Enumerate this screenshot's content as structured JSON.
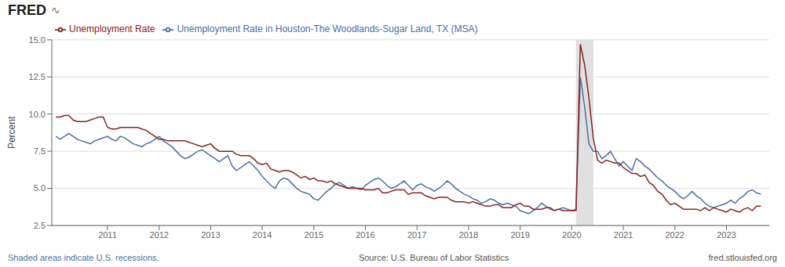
{
  "chart_data": {
    "type": "line",
    "ylabel": "Percent",
    "annotations": [
      "FRED",
      "∿",
      "Shaded areas indicate U.S. recessions.",
      "Source: U.S. Bureau of Labor Statistics",
      "fred.stlouisfed.org"
    ],
    "xlim": [
      2009.92,
      2023.83
    ],
    "xticks": [
      2011,
      2012,
      2013,
      2014,
      2015,
      2016,
      2017,
      2018,
      2019,
      2020,
      2021,
      2022,
      2023
    ],
    "ylim": [
      2.5,
      15.0
    ],
    "yticks": [
      2.5,
      {
        "value": 5.0,
        "label": "5.0"
      },
      7.5,
      {
        "value": 10.0,
        "label": "10.0"
      },
      12.5,
      {
        "value": 15.0,
        "label": "15.0"
      }
    ],
    "grid": true,
    "recessions": {
      "values": [
        [
          2020.083,
          2020.42
        ]
      ],
      "color": "#e0e0e0"
    },
    "x": [
      2010.0,
      2010.083,
      2010.167,
      2010.25,
      2010.333,
      2010.417,
      2010.5,
      2010.583,
      2010.667,
      2010.75,
      2010.833,
      2010.917,
      2011.0,
      2011.083,
      2011.167,
      2011.25,
      2011.333,
      2011.417,
      2011.5,
      2011.583,
      2011.667,
      2011.75,
      2011.833,
      2011.917,
      2012.0,
      2012.083,
      2012.167,
      2012.25,
      2012.333,
      2012.417,
      2012.5,
      2012.583,
      2012.667,
      2012.75,
      2012.833,
      2012.917,
      2013.0,
      2013.083,
      2013.167,
      2013.25,
      2013.333,
      2013.417,
      2013.5,
      2013.583,
      2013.667,
      2013.75,
      2013.833,
      2013.917,
      2014.0,
      2014.083,
      2014.167,
      2014.25,
      2014.333,
      2014.417,
      2014.5,
      2014.583,
      2014.667,
      2014.75,
      2014.833,
      2014.917,
      2015.0,
      2015.083,
      2015.167,
      2015.25,
      2015.333,
      2015.417,
      2015.5,
      2015.583,
      2015.667,
      2015.75,
      2015.833,
      2015.917,
      2016.0,
      2016.083,
      2016.167,
      2016.25,
      2016.333,
      2016.417,
      2016.5,
      2016.583,
      2016.667,
      2016.75,
      2016.833,
      2016.917,
      2017.0,
      2017.083,
      2017.167,
      2017.25,
      2017.333,
      2017.417,
      2017.5,
      2017.583,
      2017.667,
      2017.75,
      2017.833,
      2017.917,
      2018.0,
      2018.083,
      2018.167,
      2018.25,
      2018.333,
      2018.417,
      2018.5,
      2018.583,
      2018.667,
      2018.75,
      2018.833,
      2018.917,
      2019.0,
      2019.083,
      2019.167,
      2019.25,
      2019.333,
      2019.417,
      2019.5,
      2019.583,
      2019.667,
      2019.75,
      2019.833,
      2019.917,
      2020.0,
      2020.083,
      2020.167,
      2020.25,
      2020.333,
      2020.417,
      2020.5,
      2020.583,
      2020.667,
      2020.75,
      2020.833,
      2020.917,
      2021.0,
      2021.083,
      2021.167,
      2021.25,
      2021.333,
      2021.417,
      2021.5,
      2021.583,
      2021.667,
      2021.75,
      2021.833,
      2021.917,
      2022.0,
      2022.083,
      2022.167,
      2022.25,
      2022.333,
      2022.417,
      2022.5,
      2022.583,
      2022.667,
      2022.75,
      2022.833,
      2022.917,
      2023.0,
      2023.083,
      2023.167,
      2023.25,
      2023.333,
      2023.417,
      2023.5,
      2023.583,
      2023.667
    ],
    "series": [
      {
        "name": "Unemployment Rate in Houston-The Woodlands-Sugar Land, TX (MSA)",
        "color": "#4a6fa5",
        "values": [
          8.5,
          8.3,
          8.5,
          8.7,
          8.5,
          8.3,
          8.2,
          8.1,
          8.0,
          8.2,
          8.3,
          8.4,
          8.5,
          8.3,
          8.2,
          8.5,
          8.4,
          8.2,
          8.0,
          7.9,
          7.8,
          8.0,
          8.1,
          8.3,
          8.5,
          8.2,
          8.0,
          7.8,
          7.5,
          7.2,
          7.0,
          7.1,
          7.3,
          7.5,
          7.6,
          7.4,
          7.2,
          7.0,
          6.8,
          7.0,
          7.2,
          6.5,
          6.2,
          6.4,
          6.6,
          6.8,
          6.5,
          6.2,
          5.8,
          5.5,
          5.2,
          5.0,
          5.5,
          5.7,
          5.6,
          5.3,
          5.0,
          4.8,
          4.7,
          4.6,
          4.3,
          4.2,
          4.5,
          4.8,
          5.0,
          5.3,
          5.4,
          5.2,
          5.0,
          5.1,
          5.0,
          4.9,
          5.2,
          5.4,
          5.6,
          5.7,
          5.5,
          5.2,
          5.0,
          5.1,
          5.3,
          5.5,
          5.2,
          4.9,
          5.2,
          5.3,
          5.1,
          5.0,
          4.8,
          5.0,
          5.2,
          5.5,
          5.3,
          5.0,
          4.8,
          4.6,
          4.5,
          4.3,
          4.2,
          4.0,
          4.1,
          4.3,
          4.2,
          4.0,
          3.9,
          4.0,
          3.9,
          3.8,
          3.5,
          3.4,
          3.3,
          3.5,
          3.7,
          4.0,
          3.8,
          3.6,
          3.5,
          3.6,
          3.7,
          3.6,
          3.5,
          3.6,
          12.5,
          10.5,
          8.0,
          7.5,
          7.5,
          7.0,
          7.2,
          7.5,
          7.0,
          6.5,
          6.8,
          6.5,
          6.2,
          7.0,
          6.8,
          6.5,
          6.3,
          6.0,
          5.7,
          5.5,
          5.2,
          5.0,
          4.8,
          4.5,
          4.3,
          4.5,
          4.8,
          4.5,
          4.3,
          4.0,
          3.8,
          3.7,
          3.8,
          3.9,
          4.0,
          4.2,
          4.0,
          4.3,
          4.5,
          4.8,
          4.9,
          4.7,
          4.6
        ]
      },
      {
        "name": "Unemployment Rate",
        "color": "#8b2222",
        "values": [
          9.8,
          9.8,
          9.9,
          9.9,
          9.6,
          9.5,
          9.5,
          9.5,
          9.6,
          9.7,
          9.8,
          9.8,
          9.1,
          9.0,
          9.0,
          9.1,
          9.1,
          9.1,
          9.1,
          9.1,
          9.0,
          8.9,
          8.7,
          8.5,
          8.3,
          8.3,
          8.2,
          8.2,
          8.2,
          8.2,
          8.2,
          8.1,
          8.0,
          7.9,
          7.8,
          7.9,
          8.0,
          7.7,
          7.5,
          7.5,
          7.5,
          7.5,
          7.3,
          7.2,
          7.2,
          7.2,
          7.0,
          6.7,
          6.6,
          6.7,
          6.3,
          6.2,
          6.1,
          6.2,
          6.2,
          6.1,
          5.9,
          5.7,
          5.8,
          5.6,
          5.7,
          5.5,
          5.5,
          5.4,
          5.5,
          5.3,
          5.2,
          5.1,
          5.0,
          5.0,
          5.0,
          5.0,
          4.9,
          4.9,
          4.9,
          5.0,
          4.7,
          4.7,
          4.8,
          4.9,
          4.9,
          4.9,
          4.6,
          4.7,
          4.7,
          4.7,
          4.5,
          4.4,
          4.3,
          4.4,
          4.4,
          4.4,
          4.2,
          4.1,
          4.1,
          4.1,
          4.0,
          4.1,
          4.0,
          3.9,
          3.8,
          3.8,
          3.9,
          3.9,
          3.7,
          3.7,
          3.7,
          3.9,
          4.0,
          3.8,
          3.8,
          3.6,
          3.6,
          3.6,
          3.7,
          3.7,
          3.5,
          3.6,
          3.5,
          3.5,
          3.5,
          3.5,
          14.7,
          13.3,
          11.1,
          8.4,
          6.9,
          6.7,
          6.9,
          6.8,
          6.7,
          6.7,
          6.4,
          6.2,
          6.0,
          6.0,
          5.8,
          5.9,
          5.4,
          5.2,
          4.8,
          4.6,
          4.2,
          3.9,
          4.0,
          3.8,
          3.6,
          3.6,
          3.6,
          3.6,
          3.5,
          3.7,
          3.5,
          3.7,
          3.6,
          3.5,
          3.4,
          3.6,
          3.5,
          3.4,
          3.6,
          3.7,
          3.5,
          3.8,
          3.8
        ]
      }
    ]
  }
}
